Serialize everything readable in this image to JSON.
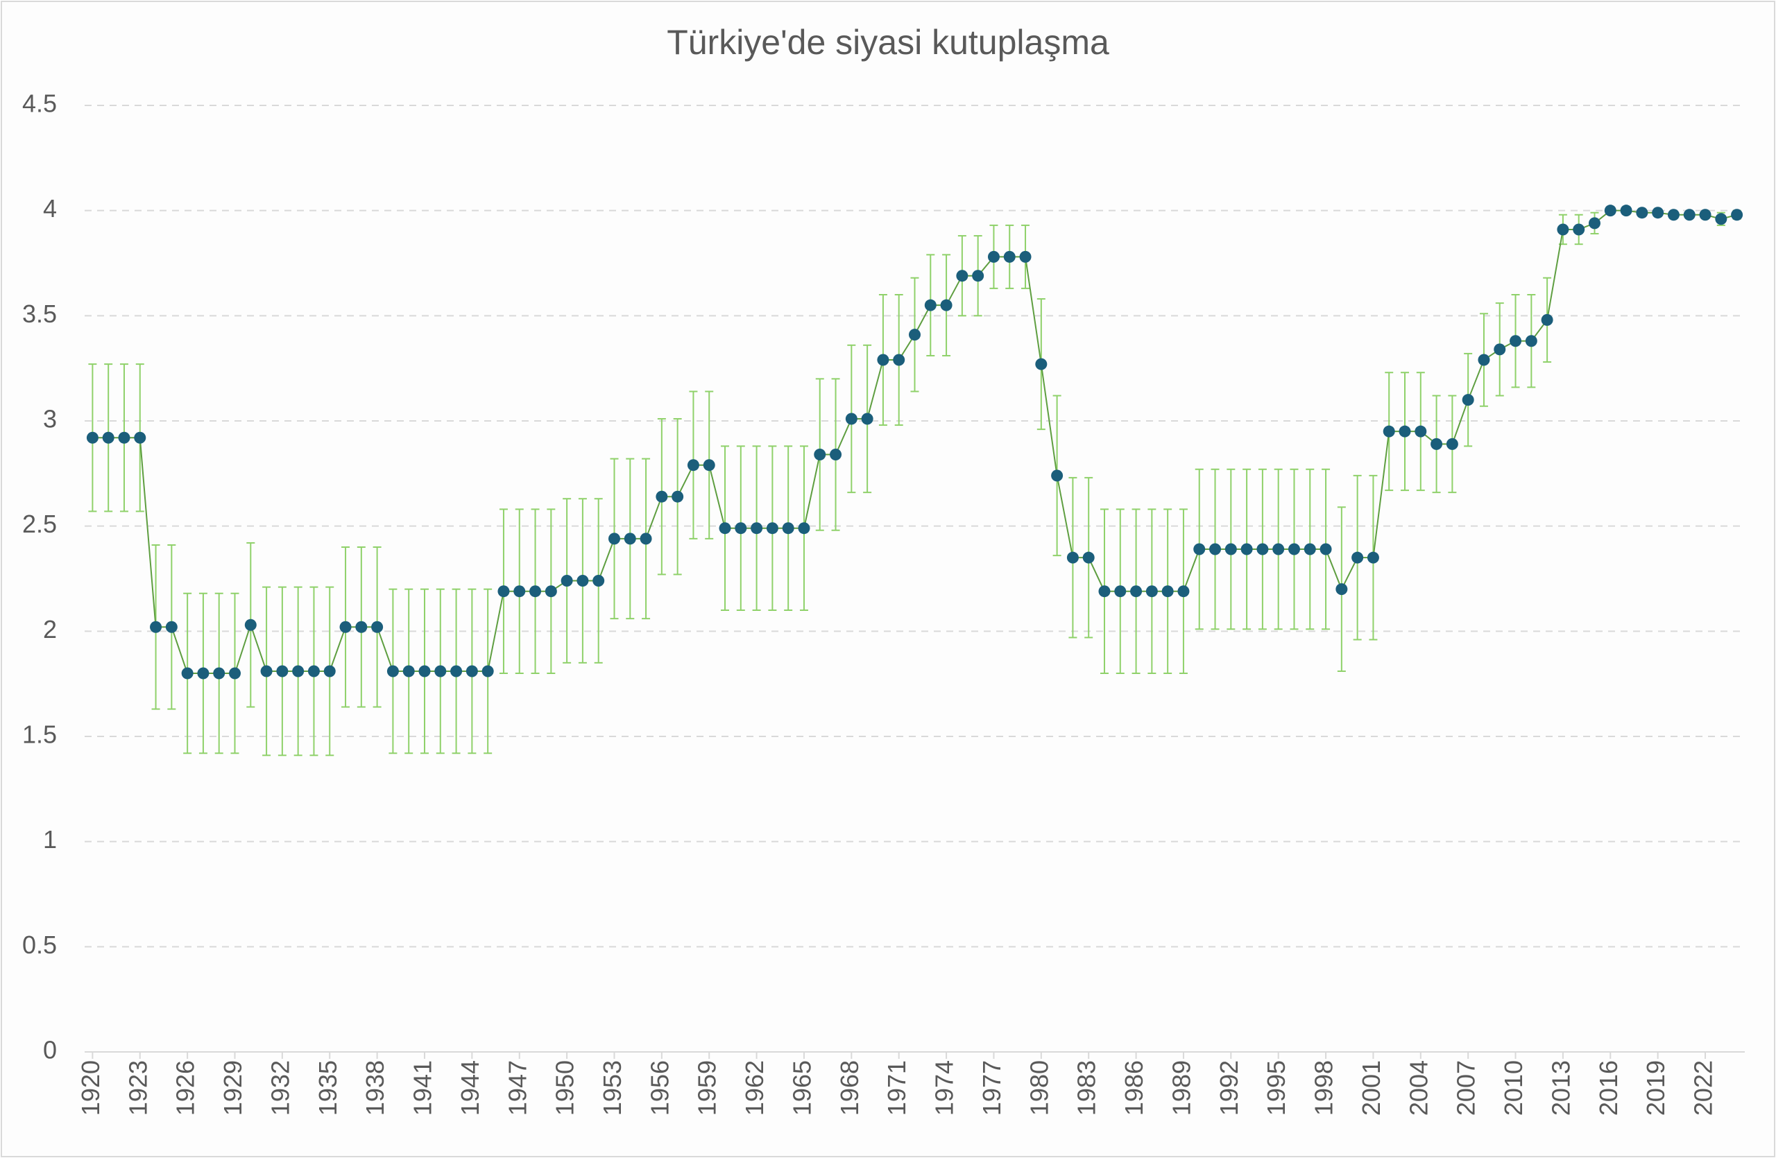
{
  "chart_data": {
    "type": "line",
    "title": "Türkiye'de siyasi kutuplaşma",
    "x": [
      1920,
      1921,
      1922,
      1923,
      1924,
      1925,
      1926,
      1927,
      1928,
      1929,
      1930,
      1931,
      1932,
      1933,
      1934,
      1935,
      1936,
      1937,
      1938,
      1939,
      1940,
      1941,
      1942,
      1943,
      1944,
      1945,
      1946,
      1947,
      1948,
      1949,
      1950,
      1951,
      1952,
      1953,
      1954,
      1955,
      1956,
      1957,
      1958,
      1959,
      1960,
      1961,
      1962,
      1963,
      1964,
      1965,
      1966,
      1967,
      1968,
      1969,
      1970,
      1971,
      1972,
      1973,
      1974,
      1975,
      1976,
      1977,
      1978,
      1979,
      1980,
      1981,
      1982,
      1983,
      1984,
      1985,
      1986,
      1987,
      1988,
      1989,
      1990,
      1991,
      1992,
      1993,
      1994,
      1995,
      1996,
      1997,
      1998,
      1999,
      2000,
      2001,
      2002,
      2003,
      2004,
      2005,
      2006,
      2007,
      2008,
      2009,
      2010,
      2011,
      2012,
      2013,
      2014,
      2015,
      2016,
      2017,
      2018,
      2019,
      2020,
      2021,
      2022,
      2023,
      2024
    ],
    "values": [
      2.92,
      2.92,
      2.92,
      2.92,
      2.02,
      2.02,
      1.8,
      1.8,
      1.8,
      1.8,
      2.03,
      1.81,
      1.81,
      1.81,
      1.81,
      1.81,
      2.02,
      2.02,
      2.02,
      1.81,
      1.81,
      1.81,
      1.81,
      1.81,
      1.81,
      1.81,
      2.19,
      2.19,
      2.19,
      2.19,
      2.24,
      2.24,
      2.24,
      2.44,
      2.44,
      2.44,
      2.64,
      2.64,
      2.79,
      2.79,
      2.49,
      2.49,
      2.49,
      2.49,
      2.49,
      2.49,
      2.84,
      2.84,
      3.01,
      3.01,
      3.29,
      3.29,
      3.41,
      3.55,
      3.55,
      3.69,
      3.69,
      3.78,
      3.78,
      3.78,
      3.27,
      2.74,
      2.35,
      2.35,
      2.19,
      2.19,
      2.19,
      2.19,
      2.19,
      2.19,
      2.39,
      2.39,
      2.39,
      2.39,
      2.39,
      2.39,
      2.39,
      2.39,
      2.39,
      2.2,
      2.35,
      2.35,
      2.95,
      2.95,
      2.95,
      2.89,
      2.89,
      3.1,
      3.29,
      3.34,
      3.38,
      3.38,
      3.48,
      3.91,
      3.91,
      3.94,
      4.0,
      4.0,
      3.99,
      3.99,
      3.98,
      3.98,
      3.98,
      3.96,
      3.98
    ],
    "errors": [
      0.35,
      0.35,
      0.35,
      0.35,
      0.39,
      0.39,
      0.38,
      0.38,
      0.38,
      0.38,
      0.39,
      0.4,
      0.4,
      0.4,
      0.4,
      0.4,
      0.38,
      0.38,
      0.38,
      0.39,
      0.39,
      0.39,
      0.39,
      0.39,
      0.39,
      0.39,
      0.39,
      0.39,
      0.39,
      0.39,
      0.39,
      0.39,
      0.39,
      0.38,
      0.38,
      0.38,
      0.37,
      0.37,
      0.35,
      0.35,
      0.39,
      0.39,
      0.39,
      0.39,
      0.39,
      0.39,
      0.36,
      0.36,
      0.35,
      0.35,
      0.31,
      0.31,
      0.27,
      0.24,
      0.24,
      0.19,
      0.19,
      0.15,
      0.15,
      0.15,
      0.31,
      0.38,
      0.38,
      0.38,
      0.39,
      0.39,
      0.39,
      0.39,
      0.39,
      0.39,
      0.38,
      0.38,
      0.38,
      0.38,
      0.38,
      0.38,
      0.38,
      0.38,
      0.38,
      0.39,
      0.39,
      0.39,
      0.28,
      0.28,
      0.28,
      0.23,
      0.23,
      0.22,
      0.22,
      0.22,
      0.22,
      0.22,
      0.2,
      0.07,
      0.07,
      0.05,
      0.01,
      0.01,
      0.01,
      0.01,
      0.01,
      0.01,
      0.01,
      0.03,
      0.02
    ],
    "line_color": "#5e9e40",
    "marker_color": "#1b5e7b",
    "error_color": "#8fd16a",
    "xlim": [
      1919.5,
      2024.5
    ],
    "xticks": [
      1920,
      1923,
      1926,
      1929,
      1932,
      1935,
      1938,
      1941,
      1944,
      1947,
      1950,
      1953,
      1956,
      1959,
      1962,
      1965,
      1968,
      1971,
      1974,
      1977,
      1980,
      1983,
      1986,
      1989,
      1992,
      1995,
      1998,
      2001,
      2004,
      2007,
      2010,
      2013,
      2016,
      2019,
      2022
    ],
    "ylim": [
      0,
      4.5
    ],
    "yticks": [
      0,
      0.5,
      1,
      1.5,
      2,
      2.5,
      3,
      3.5,
      4,
      4.5
    ],
    "grid": true
  }
}
